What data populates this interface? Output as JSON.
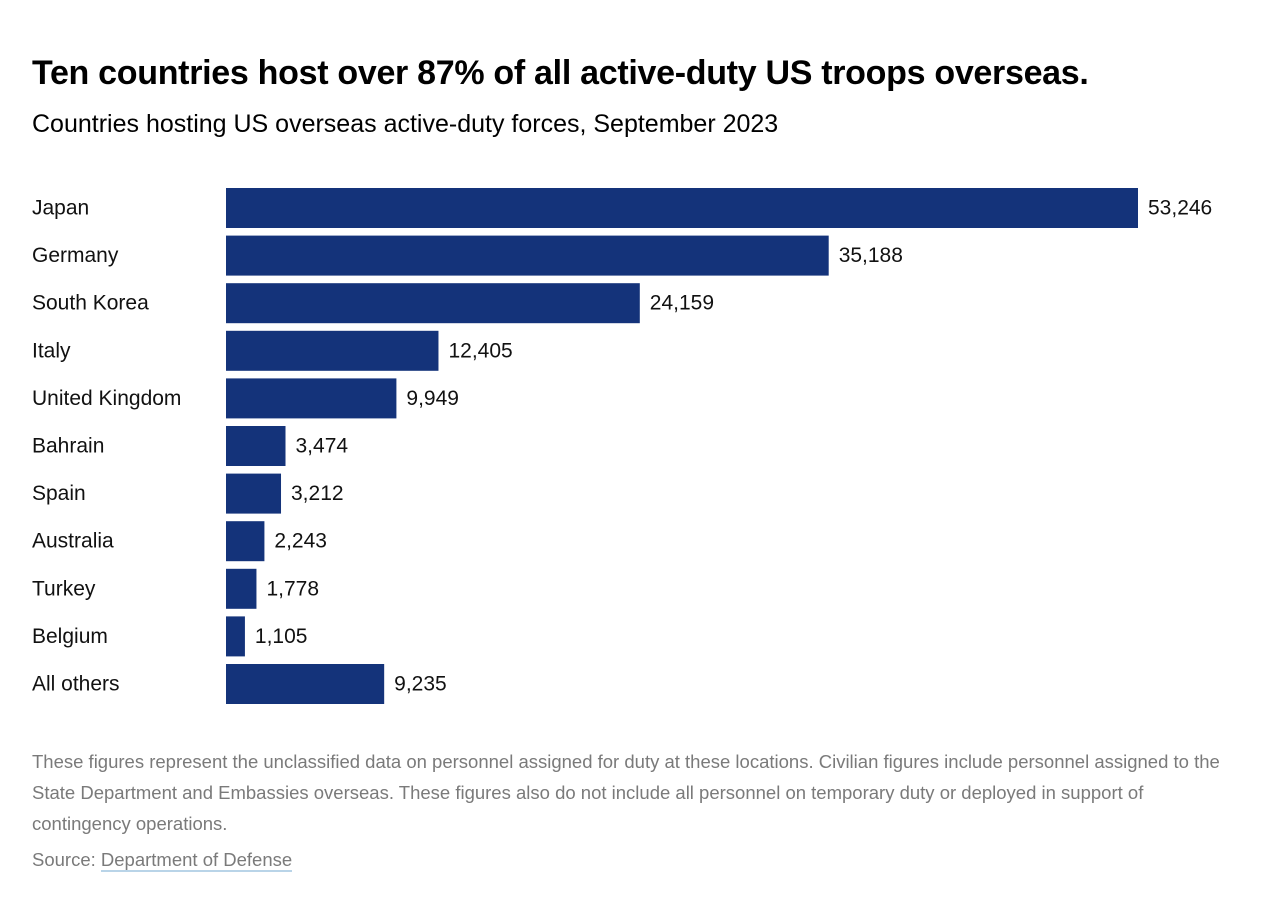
{
  "header": {
    "title": "Ten countries host over 87% of all active-duty US troops overseas.",
    "subtitle": "Countries hosting US overseas active-duty forces, September 2023"
  },
  "chart_data": {
    "type": "bar",
    "orientation": "horizontal",
    "categories": [
      "Japan",
      "Germany",
      "South Korea",
      "Italy",
      "United Kingdom",
      "Bahrain",
      "Spain",
      "Australia",
      "Turkey",
      "Belgium",
      "All others"
    ],
    "values": [
      53246,
      35188,
      24159,
      12405,
      9949,
      3474,
      3212,
      2243,
      1778,
      1105,
      9235
    ],
    "value_labels": [
      "53,246",
      "35,188",
      "24,159",
      "12,405",
      "9,949",
      "3,474",
      "3,212",
      "2,243",
      "1,778",
      "1,105",
      "9,235"
    ],
    "bar_color": "#14337a",
    "grid": false,
    "legend": "none"
  },
  "footer": {
    "note": "These figures represent the unclassified data on personnel assigned for duty at these locations. Civilian figures include personnel assigned to the State Department and Embassies overseas. These figures also do not include all personnel on temporary duty or deployed in support of contingency operations.",
    "source_prefix": "Source: ",
    "source_link": "Department of Defense"
  }
}
